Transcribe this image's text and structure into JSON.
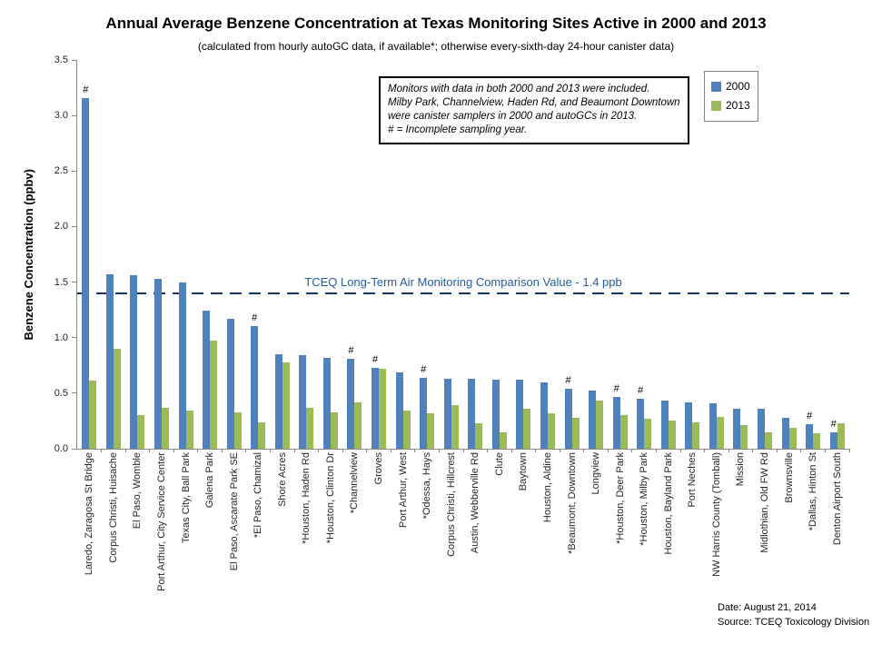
{
  "title": "Annual Average Benzene Concentration at Texas Monitoring Sites Active in 2000 and 2013",
  "subtitle": "(calculated from hourly autoGC data, if available*; otherwise every-sixth-day 24-hour canister data)",
  "chart_data": {
    "type": "bar",
    "title": "Annual Average Benzene Concentration at Texas Monitoring Sites Active in 2000 and 2013",
    "xlabel": "",
    "ylabel": "Benzene Concentration (ppbv)",
    "ylim": [
      0,
      3.5
    ],
    "ytick_step": 0.5,
    "grid": false,
    "legend_position": "top-right",
    "categories": [
      "Laredo, Zaragosa St Bridge",
      "Corpus Christi, Huisache",
      "El Paso, Womble",
      "Port Arthur, City Service Center",
      "Texas City, Ball Park",
      "Galena Park",
      "El Paso, Ascarate Park SE",
      "*El Paso, Chamizal",
      "Shore Acres",
      "*Houston, Haden Rd",
      "*Houston, Clinton Dr",
      "*Channelview",
      "Groves",
      "Port Arthur, West",
      "*Odessa, Hays",
      "Corpus Christi, Hillcrest",
      "Austin, Webberville Rd",
      "Clute",
      "Baytown",
      "Houston, Aldine",
      "*Beaumont, Downtown",
      "Longview",
      "*Houston, Deer Park",
      "*Houston, Milby Park",
      "Houston, Bayland Park",
      "Port Neches",
      "NW Harris County (Tomball)",
      "Mission",
      "Midlothian, Old FW Rd",
      "Brownsville",
      "*Dallas, Hinton St",
      "Denton Airport South"
    ],
    "series": [
      {
        "name": "2000",
        "color": "#4F81BD",
        "values": [
          3.16,
          1.57,
          1.56,
          1.53,
          1.5,
          1.24,
          1.17,
          1.1,
          0.85,
          0.84,
          0.82,
          0.81,
          0.73,
          0.69,
          0.64,
          0.63,
          0.63,
          0.62,
          0.62,
          0.6,
          0.54,
          0.52,
          0.47,
          0.45,
          0.43,
          0.42,
          0.41,
          0.36,
          0.36,
          0.28,
          0.22,
          0.15
        ]
      },
      {
        "name": "2013",
        "color": "#9BBB59",
        "values": [
          0.61,
          0.9,
          0.3,
          0.37,
          0.34,
          0.97,
          0.33,
          0.24,
          0.78,
          0.37,
          0.33,
          0.42,
          0.72,
          0.34,
          0.32,
          0.39,
          0.23,
          0.15,
          0.36,
          0.32,
          0.28,
          0.43,
          0.3,
          0.27,
          0.25,
          0.24,
          0.29,
          0.21,
          0.15,
          0.19,
          0.14,
          0.23
        ]
      }
    ],
    "incomplete_marker": "#",
    "incomplete_indices": [
      0,
      7,
      11,
      12,
      14,
      20,
      22,
      23,
      30,
      31
    ],
    "reference_line": {
      "value": 1.4,
      "label": "TCEQ Long-Term Air Monitoring Comparison Value - 1.4 ppb",
      "color": "#17375E"
    }
  },
  "note_box": {
    "lines": [
      "Monitors with data in both 2000 and 2013 were included.",
      "Milby Park,  Channelview, Haden  Rd, and Beaumont Downtown",
      "were canister samplers in 2000 and autoGCs in 2013.",
      "# = Incomplete sampling year."
    ]
  },
  "legend": {
    "items": [
      {
        "label": "2000",
        "color": "#4F81BD"
      },
      {
        "label": "2013",
        "color": "#9BBB59"
      }
    ]
  },
  "footer": {
    "date_line": "Date: August 21, 2014",
    "source_line": "Source: TCEQ Toxicology Division"
  },
  "colors": {
    "bar_2000": "#4F81BD",
    "bar_2013": "#9BBB59",
    "reference_line": "#17375E",
    "reference_text": "#245D9F",
    "axis": "#898989"
  }
}
